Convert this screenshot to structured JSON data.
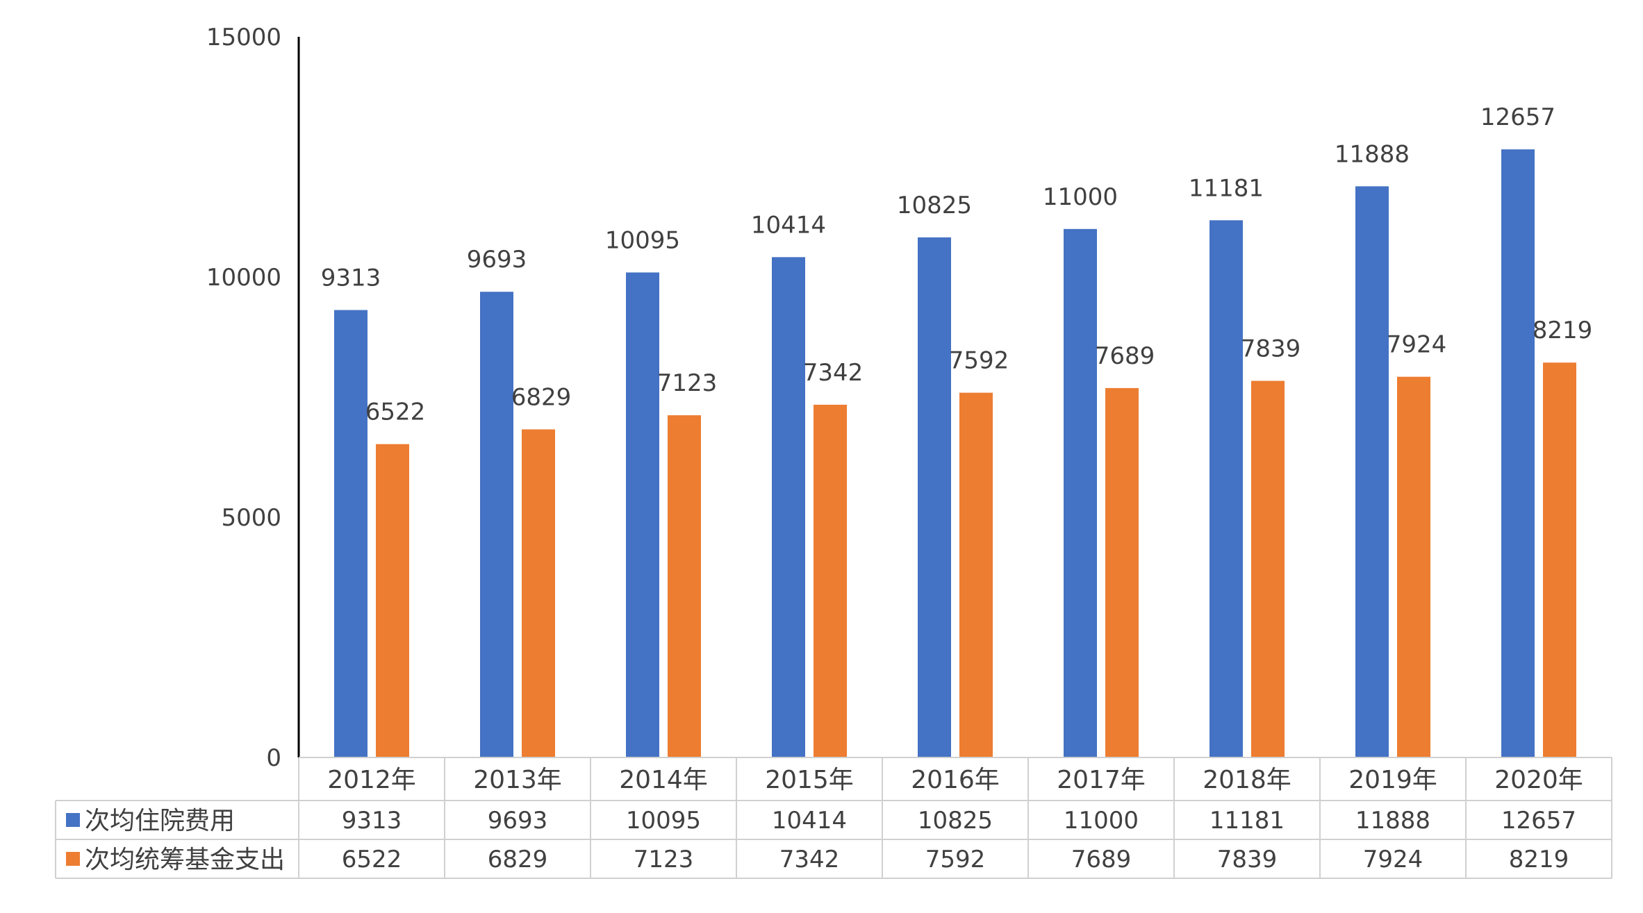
{
  "chart_data": {
    "type": "bar",
    "categories": [
      "2012年",
      "2013年",
      "2014年",
      "2015年",
      "2016年",
      "2017年",
      "2018年",
      "2019年",
      "2020年"
    ],
    "series": [
      {
        "name": "次均住院费用",
        "color": "#4472C4",
        "values": [
          9313,
          9693,
          10095,
          10414,
          10825,
          11000,
          11181,
          11888,
          12657
        ]
      },
      {
        "name": "次均统筹基金支出",
        "color": "#ED7D31",
        "values": [
          6522,
          6829,
          7123,
          7342,
          7592,
          7689,
          7839,
          7924,
          8219
        ]
      }
    ],
    "yticks": [
      "0",
      "5000",
      "10000",
      "15000"
    ],
    "ylim": [
      0,
      15000
    ],
    "data_labels": true,
    "data_table": true,
    "grid": false
  }
}
